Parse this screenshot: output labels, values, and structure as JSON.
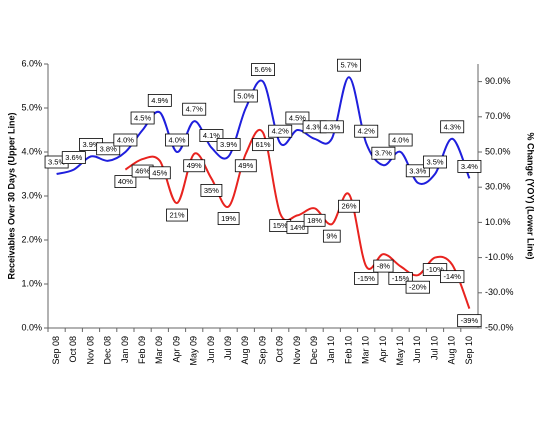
{
  "chart_data": {
    "type": "line",
    "y_label": "Receivables Over 30 Days (Upper Line)",
    "y2_label": "% Change (YOY) (Lower Line)",
    "categories": [
      "Sep 08",
      "Oct 08",
      "Nov 08",
      "Dec 08",
      "Jan 09",
      "Feb 09",
      "Mar 09",
      "Apr 09",
      "May 09",
      "Jun 09",
      "Jul 09",
      "Aug 09",
      "Sep 09",
      "Oct 09",
      "Nov 09",
      "Dec 09",
      "Jan 10",
      "Feb 10",
      "Mar 10",
      "Apr 10",
      "May 10",
      "Jun 10",
      "Jul 10",
      "Aug 10",
      "Sep 10"
    ],
    "series": [
      {
        "name": "Receivables Over 30 Days",
        "color": "#1f1fdd",
        "values": [
          3.5,
          3.6,
          3.9,
          3.8,
          4.0,
          4.5,
          4.9,
          4.0,
          4.7,
          4.1,
          3.9,
          5.0,
          5.6,
          4.2,
          4.5,
          4.3,
          4.3,
          5.7,
          4.2,
          3.7,
          4.0,
          3.3,
          3.5,
          4.3,
          3.4
        ],
        "value_labels": [
          "3.5%",
          "3.6%",
          "3.9%",
          "3.8%",
          "4.0%",
          "4.5%",
          "4.9%",
          "4.0%",
          "4.7%",
          "4.1%",
          "3.9%",
          "5.0%",
          "5.6%",
          "4.2%",
          "4.5%",
          "4.3%",
          "4.3%",
          "5.7%",
          "4.2%",
          "3.7%",
          "4.0%",
          "3.3%",
          "3.5%",
          "4.3%",
          "3.4%"
        ]
      },
      {
        "name": "% Change (YOY)",
        "color": "#e8231f",
        "axis": "y2",
        "values": [
          null,
          null,
          null,
          null,
          40,
          46,
          45,
          21,
          49,
          35,
          19,
          49,
          61,
          15,
          14,
          18,
          9,
          26,
          -15,
          -8,
          -15,
          -20,
          -10,
          -14,
          -39
        ],
        "value_labels": [
          null,
          null,
          null,
          null,
          "40%",
          "46%",
          "45%",
          "21%",
          "49%",
          "35%",
          "19%",
          "49%",
          "61%",
          "15%",
          "14%",
          "18%",
          "9%",
          "26%",
          "-15%",
          "-8%",
          "-15%",
          "-20%",
          "-10%",
          "-14%",
          "-39%"
        ]
      }
    ],
    "ylim": [
      0,
      6
    ],
    "yticks": [
      {
        "value": 0,
        "label": "0.0%"
      },
      {
        "value": 1,
        "label": "1.0%"
      },
      {
        "value": 2,
        "label": "2.0%"
      },
      {
        "value": 3,
        "label": "3.0%"
      },
      {
        "value": 4,
        "label": "4.0%"
      },
      {
        "value": 5,
        "label": "5.0%"
      },
      {
        "value": 6,
        "label": "6.0%"
      }
    ],
    "y2lim": [
      -50,
      100
    ],
    "y2ticks": [
      {
        "value": -50,
        "label": "-50.0%"
      },
      {
        "value": -30,
        "label": "-30.0%"
      },
      {
        "value": -10,
        "label": "-10.0%"
      },
      {
        "value": 10,
        "label": "10.0%"
      },
      {
        "value": 30,
        "label": "30.0%"
      },
      {
        "value": 50,
        "label": "50.0%"
      },
      {
        "value": 70,
        "label": "70.0%"
      },
      {
        "value": 90,
        "label": "90.0%"
      }
    ],
    "grid": false
  }
}
